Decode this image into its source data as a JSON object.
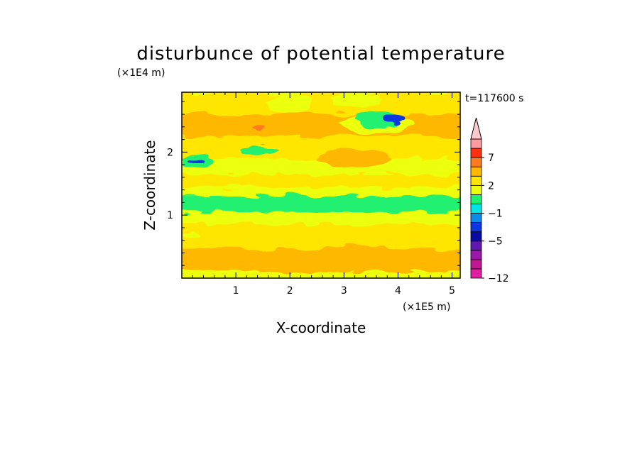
{
  "chart_data": {
    "type": "heatmap",
    "title": "disturbunce of potential temperature",
    "time_label": "t=117600 s",
    "x_axis": {
      "label": "X-coordinate",
      "unit": "(×1E5 m)",
      "range": [
        0,
        5.15
      ],
      "ticks": [
        1,
        2,
        3,
        4,
        5
      ],
      "tick_labels": [
        "1",
        "2",
        "3",
        "4",
        "5"
      ]
    },
    "z_axis": {
      "label": "Z-coordinate",
      "unit": "(×1E4 m)",
      "range": [
        0,
        2.95
      ],
      "ticks": [
        1,
        2
      ],
      "tick_labels": [
        "1",
        "2"
      ]
    },
    "colorbar": {
      "levels": [
        -12,
        -10,
        -8,
        -7,
        -5,
        -3,
        -2,
        -1,
        0,
        1,
        2,
        3,
        5,
        7,
        9
      ],
      "colors": [
        "#e020a0",
        "#c01890",
        "#9a18a8",
        "#6018b0",
        "#0a0aa0",
        "#0a38e0",
        "#0a8ce8",
        "#00e4e4",
        "#20f070",
        "#ecff10",
        "#ffe600",
        "#ffb800",
        "#ff7a20",
        "#ff3010",
        "#ff9aa0",
        "#ffc8cc"
      ],
      "tick_values": [
        -12,
        -5,
        -1,
        2,
        7
      ],
      "tick_labels": [
        "−12",
        "−5",
        "−1",
        "2",
        "7"
      ],
      "extend": "max"
    },
    "field_bands": [
      {
        "z": [
          0.0,
          0.1
        ],
        "value": 0.5
      },
      {
        "z": [
          0.1,
          0.45
        ],
        "value": 2.2
      },
      {
        "z": [
          0.45,
          0.85
        ],
        "value": 1.4
      },
      {
        "z": [
          0.85,
          1.05
        ],
        "value": 0.4
      },
      {
        "z": [
          1.05,
          1.3
        ],
        "value": -0.5
      },
      {
        "z": [
          1.3,
          1.45
        ],
        "value": 0.5
      },
      {
        "z": [
          1.45,
          1.65
        ],
        "value": 1.3
      },
      {
        "z": [
          1.65,
          1.9
        ],
        "value": 0.6
      },
      {
        "z": [
          1.9,
          2.25
        ],
        "value": 1.6
      },
      {
        "z": [
          2.25,
          2.6
        ],
        "value": 2.2
      },
      {
        "z": [
          2.6,
          2.95
        ],
        "value": 1.2
      }
    ],
    "field_features": [
      {
        "x": [
          0.2,
          2.2
        ],
        "z": [
          0.12,
          0.45
        ],
        "value": 2.6
      },
      {
        "x": [
          2.6,
          3.9
        ],
        "z": [
          0.25,
          0.55
        ],
        "value": 2.4
      },
      {
        "x": [
          0.7,
          2.0
        ],
        "z": [
          2.3,
          2.55
        ],
        "value": 2.8
      },
      {
        "x": [
          1.3,
          1.5
        ],
        "z": [
          2.33,
          2.45
        ],
        "value": 3.5
      },
      {
        "x": [
          2.9,
          4.3
        ],
        "z": [
          2.3,
          2.6
        ],
        "value": 0.4
      },
      {
        "x": [
          3.2,
          4.1
        ],
        "z": [
          2.4,
          2.65
        ],
        "value": -0.4
      },
      {
        "x": [
          3.75,
          4.15
        ],
        "z": [
          2.45,
          2.6
        ],
        "value": -3.5
      },
      {
        "x": [
          0.0,
          0.55
        ],
        "z": [
          1.75,
          1.95
        ],
        "value": -0.4
      },
      {
        "x": [
          0.1,
          0.4
        ],
        "z": [
          1.82,
          1.9
        ],
        "value": -4
      },
      {
        "x": [
          1.1,
          1.8
        ],
        "z": [
          1.95,
          2.1
        ],
        "value": -0.4
      },
      {
        "x": [
          2.5,
          3.8
        ],
        "z": [
          1.75,
          2.05
        ],
        "value": 2.4
      },
      {
        "x": [
          0.5,
          1.5
        ],
        "z": [
          0.95,
          1.05
        ],
        "value": 0.4
      },
      {
        "x": [
          1.6,
          2.4
        ],
        "z": [
          2.6,
          2.95
        ],
        "value": 0.4
      },
      {
        "x": [
          2.8,
          3.7
        ],
        "z": [
          2.7,
          2.95
        ],
        "value": 0.4
      },
      {
        "x": [
          0.0,
          0.4
        ],
        "z": [
          0.6,
          0.75
        ],
        "value": 0.4
      }
    ]
  }
}
